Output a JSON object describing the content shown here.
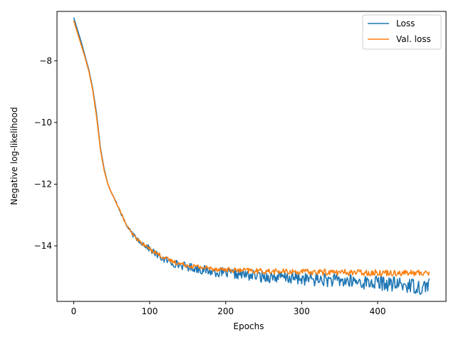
{
  "chart_data": {
    "type": "line",
    "title": "",
    "xlabel": "Epochs",
    "ylabel": "Negative log-likelihood",
    "xlim": [
      -22,
      490
    ],
    "ylim": [
      -15.8,
      -6.4
    ],
    "xticks": [
      0,
      100,
      200,
      300,
      400
    ],
    "yticks": [
      -14,
      -12,
      -10,
      -8
    ],
    "ytick_labels": [
      "−14",
      "−12",
      "−10",
      "−8"
    ],
    "grid": false,
    "legend_position": "top-right",
    "series": [
      {
        "name": "Loss",
        "color": "#1f77b4",
        "x": [
          0,
          5,
          10,
          15,
          20,
          25,
          30,
          35,
          40,
          45,
          50,
          55,
          60,
          65,
          70,
          75,
          80,
          85,
          90,
          100,
          110,
          120,
          130,
          140,
          150,
          160,
          170,
          180,
          190,
          200,
          210,
          220,
          230,
          240,
          250,
          260,
          270,
          280,
          290,
          300,
          310,
          320,
          330,
          340,
          350,
          360,
          370,
          380,
          390,
          400,
          410,
          420,
          430,
          440,
          450,
          460,
          468
        ],
        "y": [
          -6.6,
          -7.0,
          -7.4,
          -7.85,
          -8.3,
          -8.9,
          -9.7,
          -10.8,
          -11.5,
          -12.0,
          -12.3,
          -12.55,
          -12.8,
          -13.1,
          -13.35,
          -13.55,
          -13.7,
          -13.8,
          -13.9,
          -14.1,
          -14.3,
          -14.45,
          -14.55,
          -14.62,
          -14.68,
          -14.72,
          -14.78,
          -14.82,
          -14.85,
          -14.88,
          -14.9,
          -14.92,
          -14.95,
          -14.97,
          -15.0,
          -15.0,
          -15.02,
          -15.03,
          -15.05,
          -15.06,
          -15.08,
          -15.1,
          -15.1,
          -15.12,
          -15.13,
          -15.15,
          -15.16,
          -15.18,
          -15.2,
          -15.2,
          -15.22,
          -15.25,
          -15.25,
          -15.28,
          -15.3,
          -15.35,
          -15.2
        ],
        "noise": [
          0,
          0,
          0,
          0,
          0,
          0,
          0,
          0,
          0,
          0,
          0.03,
          0.04,
          0.05,
          0.05,
          0.06,
          0.07,
          0.08,
          0.09,
          0.1,
          0.1,
          0.12,
          0.12,
          0.13,
          0.13,
          0.14,
          0.14,
          0.15,
          0.15,
          0.16,
          0.16,
          0.17,
          0.17,
          0.18,
          0.18,
          0.19,
          0.19,
          0.2,
          0.2,
          0.2,
          0.21,
          0.21,
          0.21,
          0.22,
          0.22,
          0.22,
          0.23,
          0.23,
          0.23,
          0.23,
          0.24,
          0.24,
          0.24,
          0.25,
          0.25,
          0.25,
          0.26,
          0.26
        ]
      },
      {
        "name": "Val. loss",
        "color": "#ff7f0e",
        "x": [
          0,
          5,
          10,
          15,
          20,
          25,
          30,
          35,
          40,
          45,
          50,
          55,
          60,
          65,
          70,
          75,
          80,
          85,
          90,
          100,
          110,
          120,
          130,
          140,
          150,
          160,
          170,
          180,
          190,
          200,
          210,
          220,
          230,
          240,
          250,
          260,
          270,
          280,
          290,
          300,
          310,
          320,
          330,
          340,
          350,
          360,
          370,
          380,
          390,
          400,
          410,
          420,
          430,
          440,
          450,
          460,
          468
        ],
        "y": [
          -6.7,
          -7.1,
          -7.5,
          -7.9,
          -8.35,
          -8.95,
          -9.8,
          -10.85,
          -11.55,
          -12.0,
          -12.3,
          -12.55,
          -12.8,
          -13.1,
          -13.35,
          -13.55,
          -13.7,
          -13.82,
          -13.92,
          -14.1,
          -14.25,
          -14.4,
          -14.5,
          -14.58,
          -14.63,
          -14.67,
          -14.7,
          -14.73,
          -14.75,
          -14.77,
          -14.79,
          -14.8,
          -14.8,
          -14.82,
          -14.82,
          -14.83,
          -14.83,
          -14.84,
          -14.84,
          -14.84,
          -14.85,
          -14.85,
          -14.85,
          -14.85,
          -14.86,
          -14.86,
          -14.86,
          -14.86,
          -14.87,
          -14.87,
          -14.87,
          -14.87,
          -14.87,
          -14.88,
          -14.88,
          -14.88,
          -14.85
        ],
        "noise": [
          0,
          0,
          0,
          0,
          0,
          0,
          0,
          0,
          0,
          0,
          0.02,
          0.03,
          0.03,
          0.04,
          0.04,
          0.05,
          0.05,
          0.05,
          0.05,
          0.06,
          0.06,
          0.07,
          0.07,
          0.07,
          0.07,
          0.08,
          0.08,
          0.08,
          0.08,
          0.08,
          0.08,
          0.08,
          0.09,
          0.09,
          0.09,
          0.09,
          0.09,
          0.09,
          0.09,
          0.09,
          0.1,
          0.1,
          0.1,
          0.1,
          0.1,
          0.1,
          0.1,
          0.1,
          0.1,
          0.1,
          0.1,
          0.1,
          0.1,
          0.1,
          0.1,
          0.1,
          0.1
        ]
      }
    ]
  }
}
